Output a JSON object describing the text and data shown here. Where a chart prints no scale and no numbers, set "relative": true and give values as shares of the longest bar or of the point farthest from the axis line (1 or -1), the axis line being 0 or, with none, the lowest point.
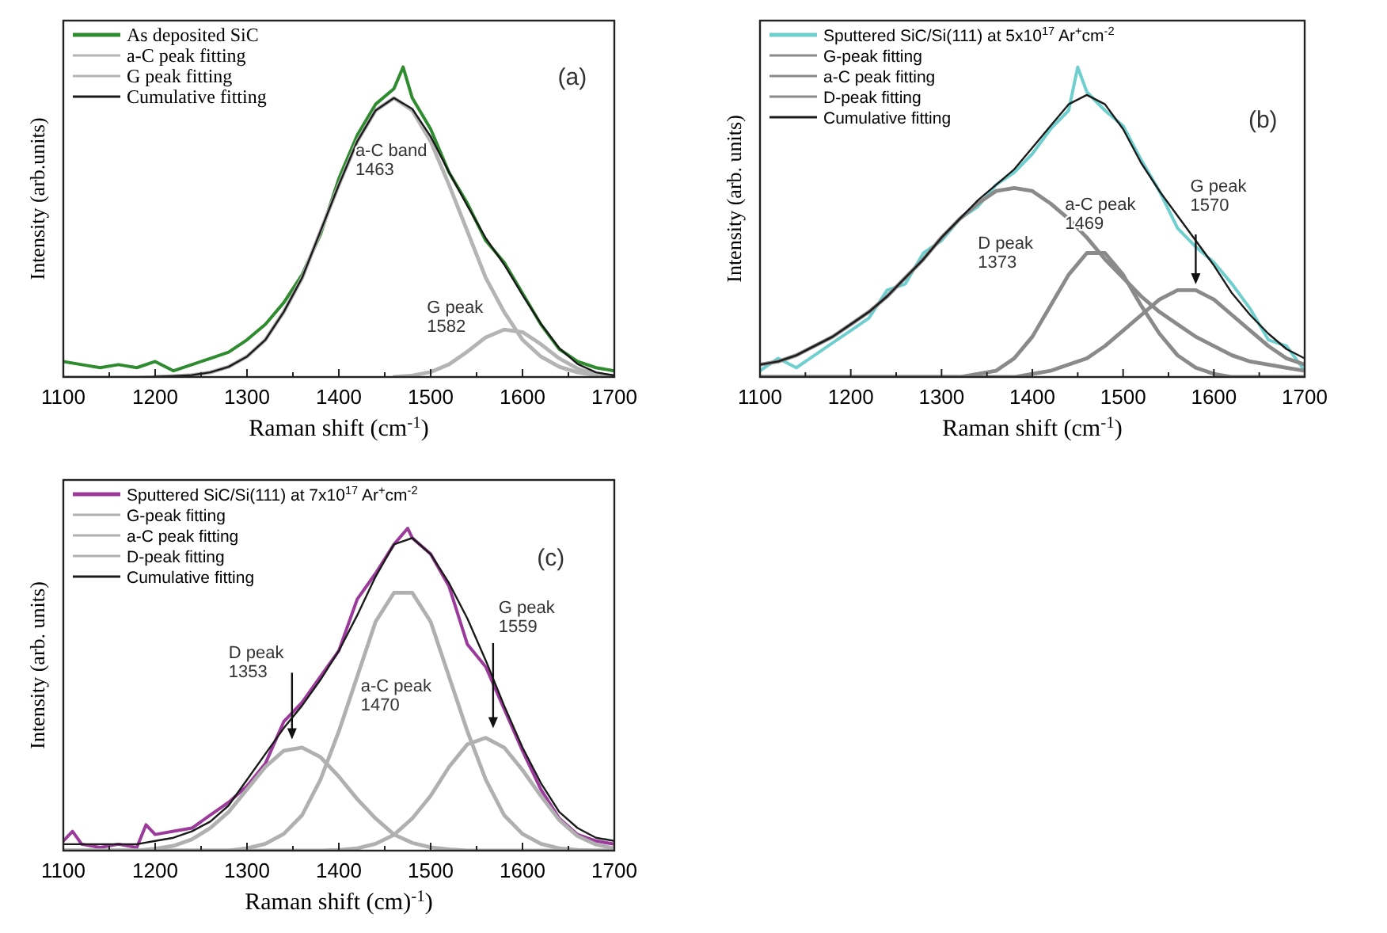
{
  "chart_data": [
    {
      "type": "line",
      "relative": true,
      "xlabel": "Raman shift (cm$^{-1}$)",
      "ylabel": "Intensity (arb.units)",
      "legend": "top left",
      "xlim": [
        1100,
        1700
      ],
      "xticks": [
        1100,
        {
          "value": 1150,
          "label": null
        },
        1200,
        {
          "value": 1250,
          "label": null
        },
        1300,
        {
          "value": 1350,
          "label": null
        },
        1400,
        {
          "value": 1450,
          "label": null
        },
        1500,
        {
          "value": 1550,
          "label": null
        },
        1600,
        {
          "value": 1650,
          "label": null
        },
        1700
      ],
      "x": [
        1100,
        1120,
        1140,
        1160,
        1180,
        1200,
        1220,
        1240,
        1260,
        1280,
        1300,
        1320,
        1340,
        1360,
        1380,
        1400,
        1420,
        1440,
        1460,
        1480,
        1500,
        1520,
        1540,
        1560,
        1580,
        1600,
        1620,
        1640,
        1660,
        1680,
        1700
      ],
      "series": [
        {
          "name": "As deposited SiC",
          "color": "#2e8b2e",
          "x": [
            1100,
            1120,
            1140,
            1160,
            1180,
            1200,
            1220,
            1240,
            1260,
            1280,
            1300,
            1320,
            1340,
            1360,
            1380,
            1400,
            1420,
            1440,
            1460,
            1470,
            1480,
            1500,
            1520,
            1540,
            1560,
            1580,
            1600,
            1620,
            1640,
            1660,
            1680,
            1700
          ],
          "values": [
            0.05,
            0.04,
            0.03,
            0.04,
            0.03,
            0.05,
            0.02,
            0.04,
            0.06,
            0.08,
            0.12,
            0.17,
            0.24,
            0.33,
            0.46,
            0.64,
            0.78,
            0.88,
            0.93,
            1.0,
            0.9,
            0.8,
            0.66,
            0.56,
            0.44,
            0.37,
            0.27,
            0.17,
            0.09,
            0.05,
            0.03,
            0.02
          ]
        },
        {
          "name": "a-C peak fitting",
          "color": "#b4b4b4",
          "values": [
            null,
            null,
            null,
            null,
            null,
            0.001,
            0.003,
            0.006,
            0.015,
            0.033,
            0.066,
            0.12,
            0.21,
            0.32,
            0.47,
            0.62,
            0.76,
            0.86,
            0.9,
            0.86,
            0.76,
            0.62,
            0.47,
            0.32,
            0.21,
            0.12,
            0.066,
            0.033,
            0.015,
            0.006,
            0.003
          ]
        },
        {
          "name": "G peak fitting",
          "color": "#b4b4b4",
          "values": [
            null,
            null,
            null,
            null,
            null,
            null,
            null,
            null,
            null,
            null,
            null,
            null,
            null,
            null,
            null,
            null,
            null,
            null,
            0,
            0.005,
            0.016,
            0.041,
            0.082,
            0.128,
            0.153,
            0.145,
            0.106,
            0.06,
            0.027,
            0.009,
            0.002
          ]
        },
        {
          "name": "Cumulative fitting",
          "color": "#1a1a1a",
          "values": [
            0,
            0,
            0,
            0,
            0,
            0.001,
            0.003,
            0.006,
            0.015,
            0.033,
            0.066,
            0.12,
            0.21,
            0.32,
            0.47,
            0.62,
            0.76,
            0.86,
            0.9,
            0.865,
            0.776,
            0.661,
            0.552,
            0.448,
            0.363,
            0.265,
            0.172,
            0.093,
            0.042,
            0.015,
            0.005
          ]
        }
      ],
      "annotations": [
        "(a)",
        "a-C band\n1463",
        "G peak\n1582"
      ]
    },
    {
      "type": "line",
      "relative": true,
      "xlabel": "Raman shift (cm$^{-1}$)",
      "ylabel": "Intensity (arb. units)",
      "legend": "top left",
      "xlim": [
        1100,
        1700
      ],
      "xticks": [
        1100,
        {
          "value": 1150,
          "label": null
        },
        1200,
        {
          "value": 1250,
          "label": null
        },
        1300,
        {
          "value": 1350,
          "label": null
        },
        1400,
        {
          "value": 1450,
          "label": null
        },
        1500,
        {
          "value": 1550,
          "label": null
        },
        1600,
        {
          "value": 1650,
          "label": null
        },
        1700
      ],
      "x": [
        1100,
        1120,
        1140,
        1160,
        1180,
        1200,
        1220,
        1240,
        1260,
        1280,
        1300,
        1320,
        1340,
        1360,
        1380,
        1400,
        1420,
        1440,
        1460,
        1480,
        1500,
        1520,
        1540,
        1560,
        1580,
        1600,
        1620,
        1640,
        1660,
        1680,
        1700
      ],
      "series": [
        {
          "name": "Sputtered SiC/Si(111) at 5x10$^{17}$ Ar$^{+}$cm$^{-2}$",
          "color": "#6fcfcf",
          "x": [
            1100,
            1120,
            1140,
            1160,
            1180,
            1200,
            1220,
            1240,
            1260,
            1280,
            1300,
            1320,
            1340,
            1360,
            1380,
            1400,
            1420,
            1440,
            1450,
            1460,
            1480,
            1500,
            1520,
            1540,
            1560,
            1580,
            1600,
            1620,
            1640,
            1660,
            1680,
            1700
          ],
          "values": [
            0.02,
            0.06,
            0.03,
            0.07,
            0.11,
            0.15,
            0.19,
            0.28,
            0.3,
            0.4,
            0.44,
            0.51,
            0.55,
            0.62,
            0.66,
            0.72,
            0.8,
            0.86,
            1.0,
            0.92,
            0.86,
            0.81,
            0.7,
            0.6,
            0.48,
            0.42,
            0.37,
            0.3,
            0.22,
            0.12,
            0.1,
            0.02
          ]
        },
        {
          "name": "G-peak fitting",
          "color": "#8a8a8a",
          "values": [
            0,
            0,
            0,
            0,
            0,
            0,
            0,
            0,
            0,
            0,
            0,
            0,
            0,
            0,
            0,
            0.01,
            0.02,
            0.04,
            0.06,
            0.1,
            0.15,
            0.2,
            0.25,
            0.28,
            0.28,
            0.25,
            0.2,
            0.15,
            0.1,
            0.06,
            0.04
          ]
        },
        {
          "name": "a-C peak fitting",
          "color": "#8a8a8a",
          "values": [
            0,
            0,
            0,
            0,
            0,
            0,
            0,
            0,
            0,
            0,
            0,
            0,
            0.01,
            0.02,
            0.06,
            0.13,
            0.23,
            0.33,
            0.4,
            0.4,
            0.33,
            0.23,
            0.14,
            0.07,
            0.03,
            0.01,
            0,
            0,
            0,
            0,
            0
          ]
        },
        {
          "name": "D-peak fitting",
          "color": "#8a8a8a",
          "values": [
            0.04,
            0.05,
            0.07,
            0.1,
            0.13,
            0.17,
            0.21,
            0.26,
            0.32,
            0.38,
            0.45,
            0.51,
            0.56,
            0.6,
            0.61,
            0.6,
            0.56,
            0.51,
            0.45,
            0.38,
            0.32,
            0.26,
            0.21,
            0.17,
            0.13,
            0.1,
            0.07,
            0.05,
            0.04,
            0.03,
            0.02
          ]
        },
        {
          "name": "Cumulative fitting",
          "color": "#1a1a1a",
          "values": [
            0.04,
            0.05,
            0.07,
            0.1,
            0.13,
            0.17,
            0.21,
            0.26,
            0.32,
            0.38,
            0.45,
            0.51,
            0.57,
            0.62,
            0.67,
            0.74,
            0.81,
            0.88,
            0.91,
            0.88,
            0.8,
            0.69,
            0.6,
            0.52,
            0.44,
            0.36,
            0.27,
            0.2,
            0.14,
            0.09,
            0.06
          ]
        }
      ],
      "annotations": [
        "(b)",
        "D peak\n1373",
        "a-C peak\n1469",
        "G peak\n1570"
      ]
    },
    {
      "type": "line",
      "relative": true,
      "xlabel": "Raman shift (cm)$^{-1}$)",
      "ylabel": "Intensity (arb. units)",
      "legend": "top left",
      "xlim": [
        1100,
        1700
      ],
      "xticks": [
        1100,
        {
          "value": 1150,
          "label": null
        },
        1200,
        {
          "value": 1250,
          "label": null
        },
        1300,
        {
          "value": 1350,
          "label": null
        },
        1400,
        {
          "value": 1450,
          "label": null
        },
        1500,
        {
          "value": 1550,
          "label": null
        },
        1600,
        {
          "value": 1650,
          "label": null
        },
        1700
      ],
      "x": [
        1100,
        1120,
        1140,
        1160,
        1180,
        1200,
        1220,
        1240,
        1260,
        1280,
        1300,
        1320,
        1340,
        1360,
        1380,
        1400,
        1420,
        1440,
        1460,
        1480,
        1500,
        1520,
        1540,
        1560,
        1580,
        1600,
        1620,
        1640,
        1660,
        1680,
        1700
      ],
      "series": [
        {
          "name": "Sputtered SiC/Si(111) at 7x10$^{17}$ Ar$^{+}$cm$^{-2}$",
          "color": "#9b3a9b",
          "x": [
            1100,
            1110,
            1120,
            1140,
            1160,
            1180,
            1190,
            1200,
            1220,
            1240,
            1260,
            1280,
            1300,
            1320,
            1340,
            1360,
            1380,
            1400,
            1420,
            1440,
            1460,
            1475,
            1480,
            1500,
            1520,
            1540,
            1560,
            1580,
            1600,
            1620,
            1640,
            1660,
            1680,
            1700
          ],
          "values": [
            0.03,
            0.06,
            0.02,
            0.01,
            0.02,
            0.01,
            0.08,
            0.05,
            0.06,
            0.07,
            0.11,
            0.15,
            0.2,
            0.27,
            0.4,
            0.46,
            0.54,
            0.62,
            0.78,
            0.86,
            0.95,
            1.0,
            0.97,
            0.92,
            0.82,
            0.64,
            0.57,
            0.44,
            0.31,
            0.19,
            0.1,
            0.05,
            0.03,
            0.02
          ]
        },
        {
          "name": "G-peak fitting",
          "color": "#b0b0b0",
          "values": [
            0,
            0,
            0,
            0,
            0,
            0,
            0,
            0,
            0,
            0,
            0,
            0,
            0,
            0,
            0,
            0.002,
            0.007,
            0.021,
            0.049,
            0.1,
            0.17,
            0.26,
            0.33,
            0.35,
            0.32,
            0.25,
            0.17,
            0.095,
            0.045,
            0.019,
            0.007
          ]
        },
        {
          "name": "a-C peak fitting",
          "color": "#b0b0b0",
          "values": [
            0,
            0,
            0,
            0,
            0,
            0,
            0,
            0,
            0,
            0,
            0.007,
            0.021,
            0.052,
            0.11,
            0.22,
            0.37,
            0.54,
            0.71,
            0.8,
            0.8,
            0.71,
            0.54,
            0.37,
            0.22,
            0.11,
            0.052,
            0.021,
            0.007,
            0.002,
            0,
            0
          ]
        },
        {
          "name": "D-peak fitting",
          "color": "#b0b0b0",
          "values": [
            0,
            0,
            0,
            0,
            0,
            0.006,
            0.015,
            0.035,
            0.07,
            0.12,
            0.19,
            0.26,
            0.31,
            0.32,
            0.29,
            0.23,
            0.16,
            0.1,
            0.05,
            0.024,
            0.01,
            0.004,
            0,
            0,
            0,
            0,
            0,
            0,
            0,
            0,
            0
          ]
        },
        {
          "name": "Cumulative fitting",
          "color": "#1a1a1a",
          "values": [
            0.02,
            0.02,
            0.02,
            0.02,
            0.02,
            0.03,
            0.04,
            0.06,
            0.09,
            0.14,
            0.22,
            0.3,
            0.38,
            0.45,
            0.53,
            0.62,
            0.73,
            0.85,
            0.95,
            0.97,
            0.92,
            0.83,
            0.72,
            0.59,
            0.45,
            0.32,
            0.21,
            0.12,
            0.07,
            0.04,
            0.03
          ]
        }
      ],
      "annotations": [
        "(c)",
        "D peak\n1353",
        "a-C peak\n1470",
        "G peak\n1559"
      ]
    }
  ]
}
